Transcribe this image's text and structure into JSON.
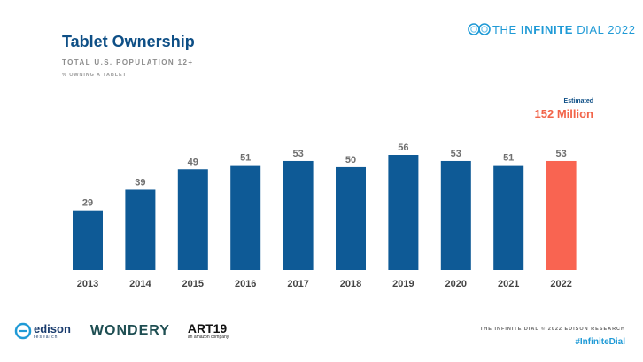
{
  "header": {
    "title": "Tablet Ownership",
    "subtitle": "TOTAL U.S. POPULATION 12+",
    "note": "% OWNING A TABLET",
    "brand_prefix": "THE ",
    "brand_bold": "INFINITE",
    "brand_suffix": " DIAL 2022",
    "brand_color": "#1f9ad6"
  },
  "callout": {
    "label": "Estimated",
    "value": "152 Million",
    "color": "#f26449"
  },
  "colors": {
    "bar": "#0e5a96",
    "highlight": "#f96451",
    "value_label": "#6e6e6e",
    "tick_label": "#444444"
  },
  "chart_data": {
    "type": "bar",
    "categories": [
      "2013",
      "2014",
      "2015",
      "2016",
      "2017",
      "2018",
      "2019",
      "2020",
      "2021",
      "2022"
    ],
    "values": [
      29,
      39,
      49,
      51,
      53,
      50,
      56,
      53,
      51,
      53
    ],
    "data_labels": [
      "29",
      "39",
      "49",
      "51",
      "53",
      "50",
      "56",
      "53",
      "51",
      "53"
    ],
    "highlight_category": "2022",
    "title": "Tablet Ownership",
    "xlabel": "",
    "ylabel": "",
    "ylim": [
      0,
      60
    ],
    "grid": false
  },
  "footer": {
    "logos": [
      {
        "name": "edison",
        "text": "edison",
        "subtext": "research"
      },
      {
        "name": "wondery",
        "text": "WONDERY"
      },
      {
        "name": "art19",
        "text": "ART19",
        "subtext": "an amazon company"
      }
    ],
    "copyright": "THE INFINITE DIAL © 2022 EDISON RESEARCH",
    "hashtag": "#InfiniteDial"
  }
}
